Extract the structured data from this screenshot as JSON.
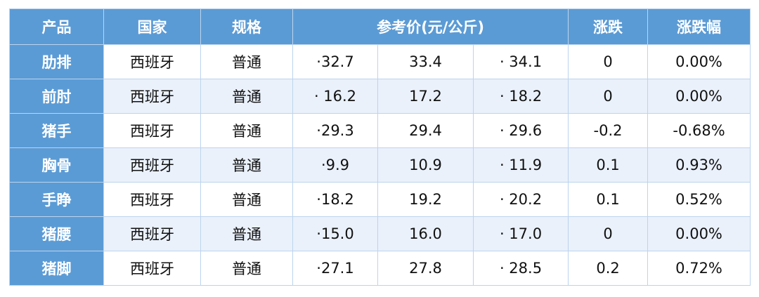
{
  "table": {
    "header": [
      "产品",
      "国家",
      "规格",
      "参考价(元/公斤)",
      "涨跌",
      "涨跌幅"
    ],
    "rows": [
      [
        "肋排",
        "西班牙",
        "普通",
        "·32.7",
        "33.4",
        "· 34.1",
        "0",
        "0.00%"
      ],
      [
        "前肘",
        "西班牙",
        "普通",
        "· 16.2",
        "17.2",
        "· 18.2",
        "0",
        "0.00%"
      ],
      [
        "猪手",
        "西班牙",
        "普通",
        "·29.3",
        "29.4",
        "· 29.6",
        "-0.2",
        "-0.68%"
      ],
      [
        "胸骨",
        "西班牙",
        "普通",
        "·9.9",
        "10.9",
        "· 11.9",
        "0.1",
        "0.93%"
      ],
      [
        "手睁",
        "西班牙",
        "普通",
        "·18.2",
        "19.2",
        "· 20.2",
        "0.1",
        "0.52%"
      ],
      [
        "猪腰",
        "西班牙",
        "普通",
        "·15.0",
        "16.0",
        "· 17.0",
        "0",
        "0.00%"
      ],
      [
        "猪脚",
        "西班牙",
        "普通",
        "·27.1",
        "27.8",
        "· 28.5",
        "0.2",
        "0.72%"
      ]
    ]
  }
}
